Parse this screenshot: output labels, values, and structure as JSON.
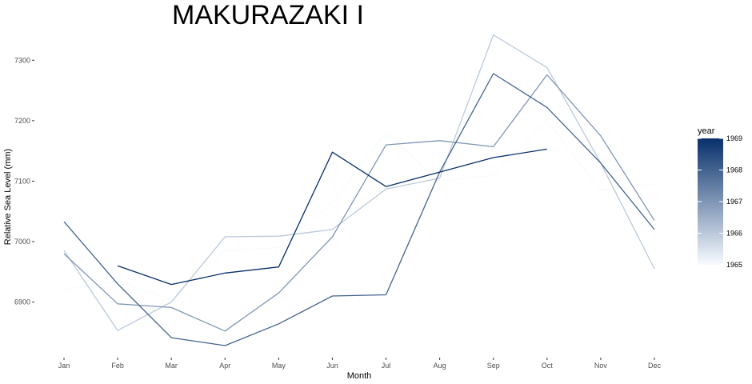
{
  "chart_data": {
    "type": "line",
    "title": "MAKURAZAKI I",
    "xlabel": "Month",
    "ylabel": "Relative Sea Level (mm)",
    "categories": [
      "Jan",
      "Feb",
      "Mar",
      "Apr",
      "May",
      "Jun",
      "Jul",
      "Aug",
      "Sep",
      "Oct",
      "Nov",
      "Dec"
    ],
    "ylim": [
      6820,
      7360
    ],
    "yticks": [
      6900,
      7000,
      7100,
      7200,
      7300
    ],
    "grid": false,
    "legend": {
      "title": "year",
      "position": "right",
      "min": 1965,
      "max": 1969,
      "ticks": [
        1965,
        1966,
        1967,
        1968,
        1969
      ],
      "low_color": "#f7fbff",
      "high_color": "#08306b"
    },
    "series": [
      {
        "year": 1965,
        "values": [
          6920,
          6935,
          6905,
          6985,
          6990,
          7065,
          7180,
          7100,
          7110,
          7200,
          7085,
          7095
        ]
      },
      {
        "year": 1966,
        "values": [
          6985,
          6853,
          6900,
          7008,
          7009,
          7020,
          7087,
          7105,
          7342,
          7288,
          7130,
          6955
        ]
      },
      {
        "year": 1967,
        "values": [
          6980,
          6897,
          6891,
          6852,
          6915,
          7008,
          7160,
          7167,
          7157,
          7276,
          7175,
          7035
        ]
      },
      {
        "year": 1968,
        "values": [
          7033,
          6930,
          6841,
          6828,
          6864,
          6910,
          6912,
          7115,
          7278,
          7222,
          7130,
          7020
        ]
      },
      {
        "year": 1969,
        "values": [
          null,
          6960,
          6929,
          6948,
          6958,
          7148,
          7091,
          7115,
          7139,
          7153,
          null,
          null
        ]
      }
    ]
  }
}
